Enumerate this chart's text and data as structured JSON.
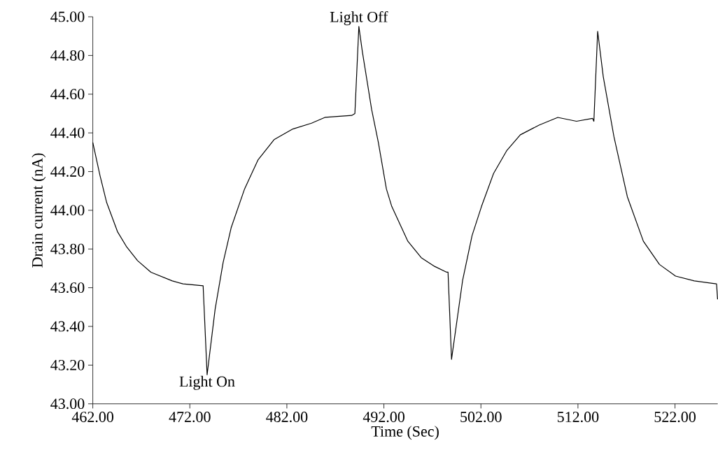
{
  "chart_data": {
    "type": "line",
    "xlabel": "Time (Sec)",
    "ylabel": "Drain current (nA)",
    "xlim": [
      462,
      526.4
    ],
    "ylim": [
      43,
      45
    ],
    "xticks": [
      {
        "value": 462,
        "label": "462.00"
      },
      {
        "value": 472,
        "label": "472.00"
      },
      {
        "value": 482,
        "label": "482.00"
      },
      {
        "value": 492,
        "label": "492.00"
      },
      {
        "value": 502,
        "label": "502.00"
      },
      {
        "value": 512,
        "label": "512.00"
      },
      {
        "value": 522,
        "label": "522.00"
      }
    ],
    "yticks": [
      {
        "value": 43,
        "label": "43.00"
      },
      {
        "value": 43.2,
        "label": "43.20"
      },
      {
        "value": 43.4,
        "label": "43.40"
      },
      {
        "value": 43.6,
        "label": "43.60"
      },
      {
        "value": 43.8,
        "label": "43.80"
      },
      {
        "value": 44,
        "label": "44.00"
      },
      {
        "value": 44.2,
        "label": "44.20"
      },
      {
        "value": 44.4,
        "label": "44.40"
      },
      {
        "value": 44.6,
        "label": "44.60"
      },
      {
        "value": 44.8,
        "label": "44.80"
      },
      {
        "value": 45,
        "label": "45.00"
      }
    ],
    "grid": false,
    "annotations": [
      {
        "text": "Light On",
        "x": 473.78,
        "y": 43.15
      },
      {
        "text": "Light Off",
        "x": 489.42,
        "y": 44.95
      }
    ],
    "series": [
      {
        "color": "#000000",
        "x": [
          462,
          462.74,
          463.43,
          464.54,
          465.5,
          466.61,
          467.99,
          470.19,
          471.3,
          473.37,
          473.78,
          474.61,
          475.43,
          476.26,
          477.64,
          479.02,
          480.68,
          482.61,
          484.54,
          485.92,
          488.68,
          489.01,
          489.42,
          489.78,
          490.74,
          491.43,
          492.26,
          492.81,
          494.47,
          495.85,
          497.23,
          498.47,
          498.61,
          498.97,
          500.12,
          501.09,
          502.06,
          503.3,
          504.68,
          506.06,
          507.99,
          509.92,
          511.85,
          513.5,
          513.64,
          514.03,
          514.61,
          515.71,
          517.09,
          518.74,
          520.4,
          522.06,
          523.99,
          526.28,
          526.39
        ],
        "values": [
          44.35,
          44.18,
          44.04,
          43.89,
          43.81,
          43.74,
          43.68,
          43.635,
          43.62,
          43.61,
          43.15,
          43.49,
          43.73,
          43.91,
          44.11,
          44.26,
          44.365,
          44.42,
          44.45,
          44.48,
          44.49,
          44.5,
          44.95,
          44.82,
          44.52,
          44.35,
          44.11,
          44.02,
          43.84,
          43.755,
          43.71,
          43.68,
          43.68,
          43.23,
          43.64,
          43.87,
          44.02,
          44.19,
          44.31,
          44.39,
          44.44,
          44.48,
          44.46,
          44.475,
          44.46,
          44.925,
          44.69,
          44.38,
          44.07,
          43.84,
          43.72,
          43.66,
          43.635,
          43.62,
          43.54
        ]
      }
    ]
  }
}
